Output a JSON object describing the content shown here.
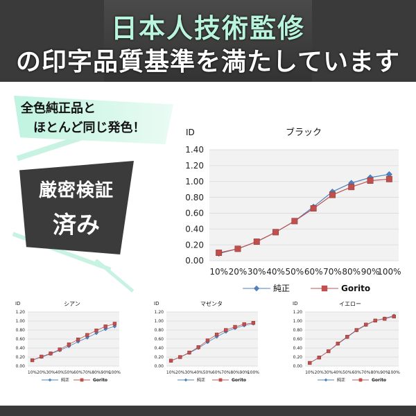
{
  "header": {
    "line1": "日本人技術監修",
    "line2": "の印字品質基準を満たしています"
  },
  "promo": {
    "badge1_line1": "全色純正品と",
    "badge1_line2": "ほとんど同じ発色！",
    "badge2_line1": "厳密検証",
    "badge2_line2": "済み"
  },
  "colors": {
    "series_a": "#4f81bd",
    "series_b": "#c0504d",
    "header_bg": "#3a3a3a",
    "accent": "#b9f5dd"
  },
  "chart_data": [
    {
      "type": "line",
      "title": "ブラック",
      "ylabel": "ID",
      "x": [
        "10%",
        "20%",
        "30%",
        "40%",
        "50%",
        "60%",
        "70%",
        "80%",
        "90%",
        "100%"
      ],
      "yticks": [
        "0.00",
        "0.20",
        "0.40",
        "0.60",
        "0.80",
        "1.00",
        "1.20",
        "1.40"
      ],
      "ylim": [
        0,
        1.4
      ],
      "grid": true,
      "legend": "bottom",
      "series": [
        {
          "name": "純正",
          "values": [
            0.09,
            0.15,
            0.24,
            0.36,
            0.5,
            0.68,
            0.87,
            0.98,
            1.05,
            1.09
          ]
        },
        {
          "name": "Gorito",
          "values": [
            0.1,
            0.15,
            0.24,
            0.36,
            0.5,
            0.66,
            0.83,
            0.93,
            1.01,
            1.03
          ]
        }
      ]
    },
    {
      "type": "line",
      "title": "シアン",
      "ylabel": "ID",
      "x": [
        "10%",
        "20%",
        "30%",
        "40%",
        "50%",
        "60%",
        "70%",
        "80%",
        "90%",
        "100%"
      ],
      "yticks": [
        "0.00",
        "0.20",
        "0.40",
        "0.60",
        "0.80",
        "1.00",
        "1.20"
      ],
      "ylim": [
        0,
        1.2
      ],
      "grid": true,
      "legend": "bottom",
      "series": [
        {
          "name": "純正",
          "values": [
            0.13,
            0.2,
            0.27,
            0.35,
            0.44,
            0.54,
            0.63,
            0.73,
            0.82,
            0.88
          ]
        },
        {
          "name": "Gorito",
          "values": [
            0.13,
            0.21,
            0.28,
            0.37,
            0.48,
            0.59,
            0.69,
            0.79,
            0.88,
            0.94
          ]
        }
      ]
    },
    {
      "type": "line",
      "title": "マゼンタ",
      "ylabel": "ID",
      "x": [
        "10%",
        "20%",
        "30%",
        "40%",
        "50%",
        "60%",
        "70%",
        "80%",
        "90%",
        "100%"
      ],
      "yticks": [
        "0.00",
        "0.20",
        "0.40",
        "0.60",
        "0.80",
        "1.00",
        "1.20"
      ],
      "ylim": [
        0,
        1.2
      ],
      "grid": true,
      "legend": "bottom",
      "series": [
        {
          "name": "純正",
          "values": [
            0.12,
            0.2,
            0.29,
            0.4,
            0.53,
            0.65,
            0.76,
            0.84,
            0.9,
            0.94
          ]
        },
        {
          "name": "Gorito",
          "values": [
            0.12,
            0.2,
            0.3,
            0.42,
            0.57,
            0.7,
            0.8,
            0.87,
            0.93,
            0.96
          ]
        }
      ]
    },
    {
      "type": "line",
      "title": "イエロー",
      "ylabel": "ID",
      "x": [
        "10%",
        "20%",
        "30%",
        "40%",
        "50%",
        "60%",
        "70%",
        "80%",
        "90%",
        "100%"
      ],
      "yticks": [
        "0.00",
        "0.20",
        "0.40",
        "0.60",
        "0.80",
        "1.00",
        "1.20"
      ],
      "ylim": [
        0,
        1.2
      ],
      "grid": true,
      "legend": "bottom",
      "series": [
        {
          "name": "純正",
          "values": [
            0.07,
            0.19,
            0.33,
            0.49,
            0.64,
            0.79,
            0.91,
            1.01,
            1.06,
            1.12
          ]
        },
        {
          "name": "Gorito",
          "values": [
            0.07,
            0.19,
            0.33,
            0.5,
            0.65,
            0.8,
            0.92,
            1.01,
            1.05,
            1.1
          ]
        }
      ]
    }
  ]
}
